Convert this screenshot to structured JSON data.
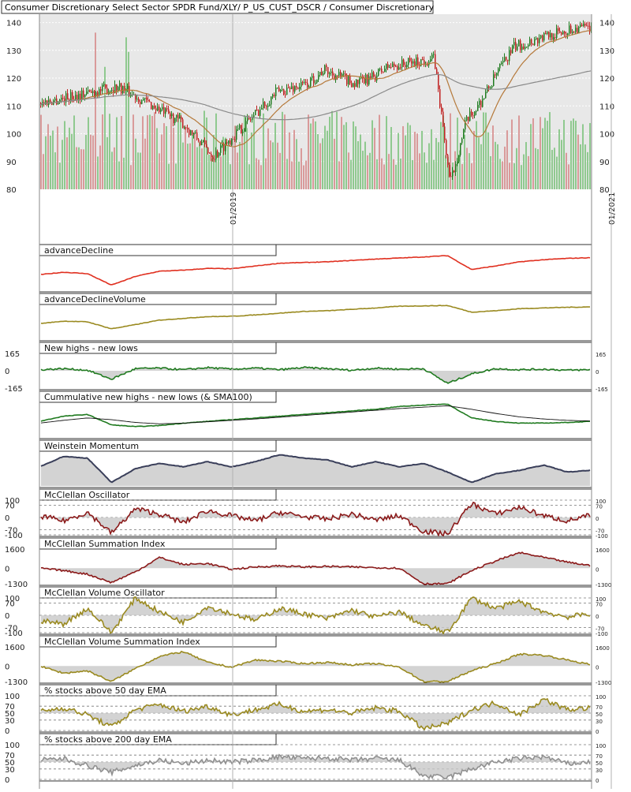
{
  "title": "Consumer Discretionary Select Sector SPDR Fund/XLY/ P_US_CUST_DSCR / Consumer Discretionary",
  "colors": {
    "panel_bg": "#e8e8e8",
    "grid": "#ffffff",
    "up_candle": "#1f7a1f",
    "down_candle": "#c02020",
    "vol_up": "#8fc98f",
    "vol_down": "#d99a9a",
    "sma50": "#b5793a",
    "sma200": "#8a8a8a",
    "red_line": "#e03020",
    "olive_line": "#9a8a20",
    "green_line": "#1f7a1f",
    "navy_line": "#3a3f5a",
    "maroon_line": "#8b1a1a",
    "gray_line": "#909090",
    "fill": "#c8c8c8"
  },
  "x_axis": {
    "date_labels": [
      "01/2019",
      "01/2021"
    ]
  },
  "chart_data": [
    {
      "type": "candlestick",
      "name": "price",
      "title": "Consumer Discretionary Select Sector SPDR Fund/XLY/ P_US_CUST_DSCR / Consumer Discretionary",
      "y_ticks": [
        80,
        90,
        100,
        110,
        120,
        130,
        140
      ],
      "ylim": [
        80,
        143
      ],
      "overlays": [
        "SMA 50",
        "SMA 200"
      ],
      "volume_shown": true,
      "price_keypoints": [
        {
          "date": "2018-01",
          "value": 111
        },
        {
          "date": "2018-06",
          "value": 117
        },
        {
          "date": "2018-10",
          "value": 104
        },
        {
          "date": "2018-12",
          "value": 92
        },
        {
          "date": "2019-04",
          "value": 115
        },
        {
          "date": "2019-06",
          "value": 118
        },
        {
          "date": "2019-07",
          "value": 123
        },
        {
          "date": "2019-09",
          "value": 118
        },
        {
          "date": "2019-10",
          "value": 120
        },
        {
          "date": "2019-11",
          "value": 124
        },
        {
          "date": "2020-01",
          "value": 126
        },
        {
          "date": "2020-02",
          "value": 127
        },
        {
          "date": "2020-03",
          "value": 82
        },
        {
          "date": "2020-04",
          "value": 104
        },
        {
          "date": "2020-05",
          "value": 112
        },
        {
          "date": "2020-06",
          "value": 122
        },
        {
          "date": "2020-07",
          "value": 131
        },
        {
          "date": "2020-09",
          "value": 135
        },
        {
          "date": "2020-11",
          "value": 138
        }
      ]
    },
    {
      "type": "line",
      "name": "advanceDecline",
      "title": "advanceDecline",
      "series": [
        {
          "values": [
            0.45,
            0.52,
            0.48,
            0.15,
            0.4,
            0.55,
            0.58,
            0.63,
            0.62,
            0.7,
            0.78,
            0.8,
            0.82,
            0.86,
            0.9,
            0.93,
            0.96,
            1.0,
            0.6,
            0.7,
            0.82,
            0.88,
            0.92,
            0.94
          ]
        }
      ]
    },
    {
      "type": "line",
      "name": "advanceDeclineVolume",
      "title": "advanceDeclineVolume",
      "series": [
        {
          "values": [
            0.45,
            0.52,
            0.5,
            0.3,
            0.42,
            0.55,
            0.6,
            0.65,
            0.66,
            0.7,
            0.75,
            0.8,
            0.82,
            0.86,
            0.9,
            0.95,
            0.96,
            0.97,
            0.78,
            0.82,
            0.88,
            0.9,
            0.92,
            0.93
          ]
        }
      ]
    },
    {
      "type": "line",
      "name": "new-highs-minus-new-lows",
      "title": "New highs - new lows",
      "y_ticks": [
        165,
        0,
        -165
      ],
      "series": [
        {
          "values": [
            10,
            20,
            5,
            -80,
            20,
            25,
            10,
            30,
            15,
            25,
            10,
            30,
            20,
            5,
            25,
            15,
            20,
            -120,
            -30,
            20,
            10,
            15,
            5,
            10
          ]
        }
      ]
    },
    {
      "type": "line",
      "name": "cumulative-new-highs-new-lows",
      "title": "Cummulative new highs - new lows (& SMA100)",
      "series": [
        {
          "name": "Cummulative new highs - new lows",
          "values": [
            0.45,
            0.6,
            0.65,
            0.35,
            0.3,
            0.33,
            0.4,
            0.45,
            0.5,
            0.55,
            0.6,
            0.65,
            0.7,
            0.75,
            0.8,
            0.88,
            0.92,
            0.95,
            0.55,
            0.45,
            0.4,
            0.4,
            0.42,
            0.45
          ]
        },
        {
          "name": "SMA100",
          "values": [
            0.4,
            0.48,
            0.55,
            0.5,
            0.42,
            0.38,
            0.4,
            0.44,
            0.48,
            0.52,
            0.57,
            0.62,
            0.67,
            0.72,
            0.77,
            0.82,
            0.86,
            0.9,
            0.8,
            0.68,
            0.58,
            0.52,
            0.48,
            0.46
          ]
        }
      ]
    },
    {
      "type": "area",
      "name": "weinstein-momentum",
      "title": "Weinstein Momentum",
      "series": [
        {
          "values": [
            0.55,
            0.85,
            0.8,
            0.1,
            0.5,
            0.65,
            0.55,
            0.7,
            0.55,
            0.7,
            0.9,
            0.8,
            0.75,
            0.55,
            0.7,
            0.55,
            0.65,
            0.4,
            0.1,
            0.35,
            0.45,
            0.6,
            0.4,
            0.45
          ]
        }
      ]
    },
    {
      "type": "area",
      "name": "mcclellan-oscillator",
      "title": "McClellan Oscillator",
      "y_ticks": [
        100,
        70,
        0,
        -70,
        -100
      ],
      "series": [
        {
          "values": [
            10,
            -20,
            30,
            -90,
            50,
            20,
            -30,
            40,
            10,
            -20,
            30,
            5,
            -10,
            20,
            -15,
            10,
            -80,
            -95,
            80,
            20,
            60,
            10,
            -20,
            15
          ]
        }
      ]
    },
    {
      "type": "area",
      "name": "mcclellan-summation-index",
      "title": "McClellan Summation Index",
      "y_ticks": [
        1600,
        0,
        -1300
      ],
      "series": [
        {
          "values": [
            0,
            -200,
            -500,
            -1200,
            -300,
            900,
            300,
            400,
            -100,
            100,
            200,
            100,
            150,
            100,
            50,
            0,
            -1300,
            -1300,
            -200,
            600,
            1300,
            900,
            500,
            200
          ]
        }
      ]
    },
    {
      "type": "area",
      "name": "mcclellan-volume-oscillator",
      "title": "McClellan Volume Oscillator",
      "y_ticks": [
        100,
        70,
        0,
        -70,
        -100
      ],
      "series": [
        {
          "values": [
            -30,
            -50,
            40,
            -100,
            100,
            20,
            -40,
            50,
            10,
            -30,
            40,
            10,
            -20,
            30,
            -10,
            20,
            -60,
            -100,
            100,
            40,
            80,
            20,
            -10,
            10
          ]
        }
      ]
    },
    {
      "type": "area",
      "name": "mcclellan-volume-summation-index",
      "title": "McClellan Volume Summation Index",
      "y_ticks": [
        1600,
        0,
        -1300
      ],
      "series": [
        {
          "values": [
            0,
            -600,
            -400,
            -1300,
            -200,
            800,
            1200,
            300,
            -100,
            500,
            400,
            200,
            300,
            100,
            200,
            -100,
            -1300,
            -1300,
            -400,
            200,
            1000,
            900,
            500,
            100
          ]
        }
      ]
    },
    {
      "type": "area",
      "name": "pct-above-50ema",
      "title": "% stocks above 50 day EMA",
      "y_ticks": [
        100,
        70,
        50,
        30,
        0
      ],
      "series": [
        {
          "values": [
            55,
            65,
            45,
            10,
            60,
            75,
            55,
            70,
            45,
            60,
            75,
            55,
            60,
            50,
            65,
            55,
            5,
            20,
            60,
            80,
            45,
            90,
            60,
            65
          ]
        }
      ]
    },
    {
      "type": "area",
      "name": "pct-above-200ema",
      "title": "% stocks above 200 day EMA",
      "y_ticks": [
        100,
        70,
        50,
        30,
        0
      ],
      "series": [
        {
          "values": [
            55,
            60,
            40,
            20,
            40,
            55,
            45,
            55,
            50,
            55,
            65,
            60,
            62,
            55,
            60,
            55,
            10,
            5,
            30,
            50,
            60,
            65,
            45,
            50
          ]
        }
      ]
    }
  ]
}
